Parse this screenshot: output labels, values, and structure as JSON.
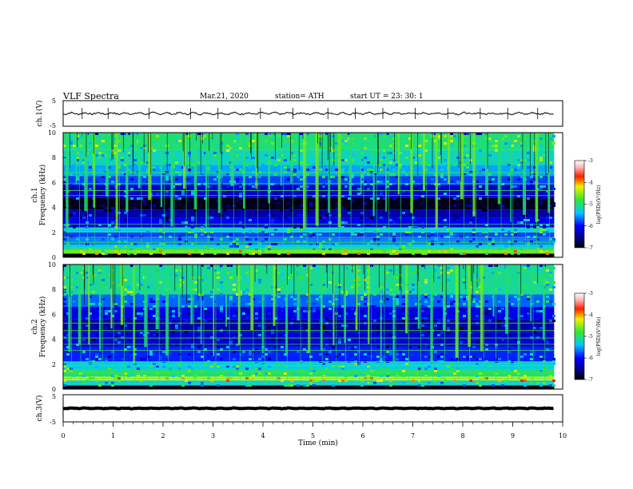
{
  "header": {
    "title": "VLF  Spectra",
    "date": "Mar.21, 2020",
    "station": "station= ATH",
    "start": "start  UT  =    23: 30: 1"
  },
  "colors": {
    "spectrogram_low": "#000000",
    "spectrogram_mid_low": "#0000c8",
    "spectrogram_mid": "#00c8ff",
    "spectrogram_mid_high": "#40e040",
    "spectrogram_high": "#ff2000"
  },
  "chart_data": [
    {
      "type": "line",
      "panel": "ch1-waveform",
      "ylabel": "ch.1(V)",
      "ylim": [
        -5,
        5
      ],
      "yticks": [
        "5",
        "-5"
      ],
      "trace_level": 0,
      "trace_amplitude": 0.5,
      "spikes": [
        0.38,
        0.9,
        1.72,
        2.55,
        3.1,
        3.95,
        4.6,
        5.3,
        5.85,
        6.4,
        7.05,
        7.7,
        8.35,
        8.9,
        9.5
      ]
    },
    {
      "type": "heatmap",
      "panel": "ch1-spectrogram",
      "ylabel": "ch.1\nFrequency (kHz)",
      "ylim": [
        0,
        10
      ],
      "yticks": [
        "10",
        "8",
        "6",
        "4",
        "2",
        "0"
      ],
      "xlim": [
        0,
        9.83
      ],
      "bands": [
        {
          "from": 0.0,
          "to": 0.3,
          "level": -7.0
        },
        {
          "from": 0.3,
          "to": 0.6,
          "level": -4.6
        },
        {
          "from": 0.6,
          "to": 1.0,
          "level": -5.3
        },
        {
          "from": 1.0,
          "to": 1.5,
          "level": -5.6
        },
        {
          "from": 1.5,
          "to": 2.0,
          "level": -5.8
        },
        {
          "from": 2.0,
          "to": 2.4,
          "level": -5.4
        },
        {
          "from": 2.4,
          "to": 3.2,
          "level": -6.1
        },
        {
          "from": 3.2,
          "to": 3.8,
          "level": -6.4
        },
        {
          "from": 3.8,
          "to": 4.8,
          "level": -6.9
        },
        {
          "from": 4.8,
          "to": 5.8,
          "level": -6.2
        },
        {
          "from": 5.8,
          "to": 6.6,
          "level": -5.8
        },
        {
          "from": 6.6,
          "to": 7.4,
          "level": -5.5
        },
        {
          "from": 7.4,
          "to": 8.6,
          "level": -5.2
        },
        {
          "from": 8.6,
          "to": 10.0,
          "level": -5.0
        }
      ],
      "lines_khz": [
        0.75,
        1.2,
        1.6,
        2.05,
        2.3,
        2.65,
        4.95,
        5.35,
        5.9,
        6.55,
        6.8
      ],
      "bursts_min": [
        0.05,
        0.25,
        0.42,
        0.6,
        0.85,
        1.05,
        1.25,
        1.5,
        1.7,
        1.95,
        2.15,
        2.4,
        2.62,
        2.85,
        3.1,
        3.35,
        3.6,
        3.85,
        4.1,
        4.35,
        4.55,
        4.8,
        5.05,
        5.3,
        5.5,
        5.72,
        5.95,
        6.2,
        6.45,
        6.7,
        6.95,
        7.2,
        7.45,
        7.7,
        7.95,
        8.2,
        8.45,
        8.7,
        8.95,
        9.2,
        9.45,
        9.7
      ]
    },
    {
      "type": "heatmap",
      "panel": "ch2-spectrogram",
      "ylabel": "ch.2\nFrequency (kHz)",
      "ylim": [
        0,
        10
      ],
      "yticks": [
        "10",
        "8",
        "6",
        "4",
        "2",
        "0"
      ],
      "xlim": [
        0,
        9.83
      ],
      "bands": [
        {
          "from": 0.0,
          "to": 0.3,
          "level": -6.8
        },
        {
          "from": 0.3,
          "to": 0.7,
          "level": -5.3
        },
        {
          "from": 0.7,
          "to": 1.0,
          "level": -4.3
        },
        {
          "from": 1.0,
          "to": 1.6,
          "level": -5.0
        },
        {
          "from": 1.6,
          "to": 2.2,
          "level": -5.3
        },
        {
          "from": 2.2,
          "to": 3.4,
          "level": -5.9
        },
        {
          "from": 3.4,
          "to": 4.6,
          "level": -6.2
        },
        {
          "from": 4.6,
          "to": 5.6,
          "level": -6.4
        },
        {
          "from": 5.6,
          "to": 6.6,
          "level": -6.1
        },
        {
          "from": 6.6,
          "to": 7.6,
          "level": -5.7
        },
        {
          "from": 7.6,
          "to": 10.0,
          "level": -5.1
        }
      ],
      "lines_khz": [
        0.45,
        0.85,
        1.35,
        1.9,
        2.2,
        3.1,
        3.6,
        4.1,
        4.7,
        5.3
      ],
      "bursts_min": [
        0.1,
        0.3,
        0.5,
        0.72,
        0.95,
        1.15,
        1.4,
        1.62,
        1.85,
        2.05,
        2.3,
        2.55,
        2.75,
        3.0,
        3.25,
        3.5,
        3.75,
        3.98,
        4.2,
        4.45,
        4.68,
        4.9,
        5.15,
        5.4,
        5.62,
        5.85,
        6.1,
        6.35,
        6.6,
        6.85,
        7.1,
        7.35,
        7.6,
        7.85,
        8.1,
        8.35,
        8.6,
        8.85,
        9.1,
        9.35,
        9.6
      ]
    },
    {
      "type": "line",
      "panel": "ch3-waveform",
      "ylabel": "ch.3(V)",
      "ylim": [
        -5,
        5
      ],
      "yticks": [
        "5",
        "-5"
      ],
      "trace_level": 0,
      "trace_amplitude": 0.15,
      "spikes": []
    }
  ],
  "time_axis": {
    "xlabel": "Time  (min)",
    "xlim": [
      0,
      10
    ],
    "ticks": [
      0,
      1,
      2,
      3,
      4,
      5,
      6,
      7,
      8,
      9,
      10
    ],
    "tick_labels": [
      "0",
      "1",
      "2",
      "3",
      "4",
      "5",
      "6",
      "7",
      "8",
      "9",
      "10"
    ]
  },
  "colorbars": [
    {
      "panel": "ch1-colorbar",
      "label": "log(PSD)(V²/Hz)",
      "range": [
        -7,
        -3
      ],
      "tick_labels": [
        "-3",
        "-4",
        "-5",
        "-6",
        "-7"
      ]
    },
    {
      "panel": "ch2-colorbar",
      "label": "log(PSD)(V²/Hz)",
      "range": [
        -7,
        -3
      ],
      "tick_labels": [
        "-3",
        "-4",
        "-5",
        "-6",
        "-7"
      ]
    }
  ]
}
